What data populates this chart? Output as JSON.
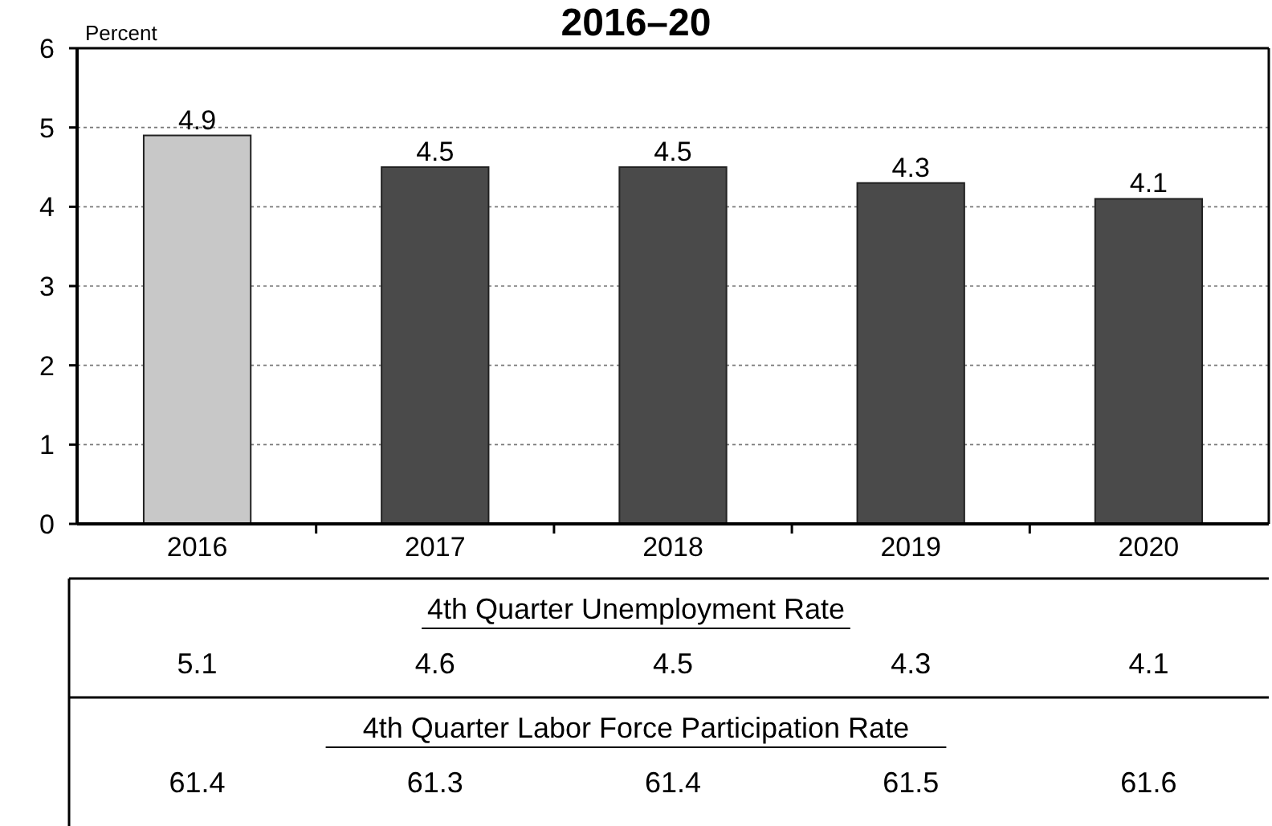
{
  "chart_data": {
    "type": "bar",
    "title": "2016–20",
    "ylabel": "Percent",
    "categories": [
      "2016",
      "2017",
      "2018",
      "2019",
      "2020"
    ],
    "values": [
      4.9,
      4.5,
      4.5,
      4.3,
      4.1
    ],
    "colors": [
      "#c8c8c8",
      "#4a4a4a",
      "#4a4a4a",
      "#4a4a4a",
      "#4a4a4a"
    ],
    "ylim": [
      0,
      6
    ],
    "yticks": [
      0,
      1,
      2,
      3,
      4,
      5,
      6
    ],
    "grid": "y",
    "data_labels": true,
    "annotations": [
      "4th Quarter Unemployment Rate",
      "5.1",
      "4.6",
      "4.5",
      "4.3",
      "4.1",
      "4th Quarter Labor Force Participation Rate",
      "61.4",
      "61.3",
      "61.4",
      "61.5",
      "61.6"
    ]
  }
}
